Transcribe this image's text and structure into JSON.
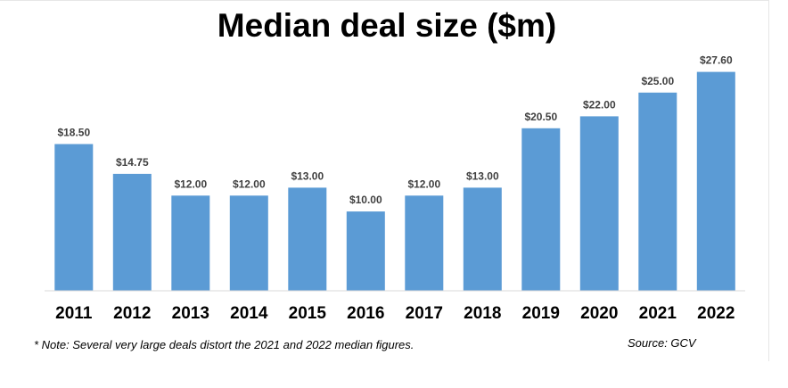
{
  "chart_data": {
    "type": "bar",
    "title": "Median deal size ($m)",
    "categories": [
      "2011",
      "2012",
      "2013",
      "2014",
      "2015",
      "2016",
      "2017",
      "2018",
      "2019",
      "2020",
      "2021",
      "2022"
    ],
    "values": [
      18.5,
      14.75,
      12.0,
      12.0,
      13.0,
      10.0,
      12.0,
      13.0,
      20.5,
      22.0,
      25.0,
      27.6
    ],
    "data_labels": [
      "$18.50",
      "$14.75",
      "$12.00",
      "$12.00",
      "$13.00",
      "$10.00",
      "$12.00",
      "$13.00",
      "$20.50",
      "$22.00",
      "$25.00",
      "$27.60"
    ],
    "xlabel": "",
    "ylabel": "",
    "ylim": [
      0,
      30
    ],
    "grid": false,
    "legend": "none",
    "bar_color": "#5b9bd5",
    "note": "* Note: Several very large deals distort the 2021 and 2022 median figures.",
    "source": "Source: GCV"
  }
}
